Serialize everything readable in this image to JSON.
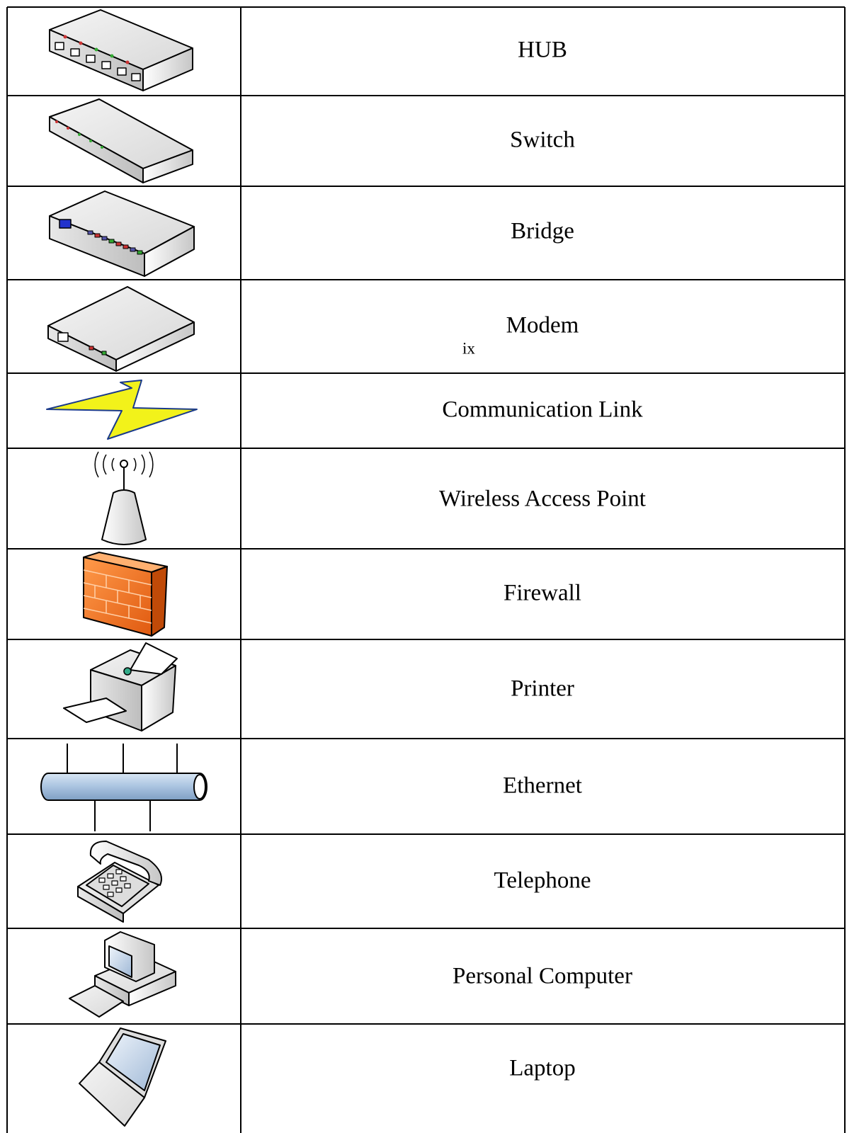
{
  "table": {
    "rows": [
      {
        "label": "HUB"
      },
      {
        "label": "Switch"
      },
      {
        "label": "Bridge"
      },
      {
        "label": "Modem"
      },
      {
        "label": "Communication Link"
      },
      {
        "label": "Wireless Access Point"
      },
      {
        "label": "Firewall"
      },
      {
        "label": "Printer"
      },
      {
        "label": "Ethernet"
      },
      {
        "label": "Telephone"
      },
      {
        "label": "Personal Computer"
      },
      {
        "label": "Laptop"
      }
    ]
  },
  "page_number": "ix"
}
